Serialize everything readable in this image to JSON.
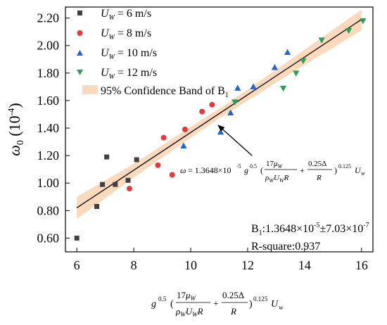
{
  "chart_data": {
    "type": "scatter",
    "xlabel": "g^0.5 (17μW / ρW UW R + 0.25Δ / R)^0.125 Uw",
    "ylabel": "ω0 (10-4)",
    "xlim": [
      5.6,
      16.4
    ],
    "ylim": [
      0.5,
      2.28
    ],
    "xticks": [
      "6",
      "8",
      "10",
      "12",
      "14",
      "16"
    ],
    "yticks": [
      "0.60",
      "0.80",
      "1.00",
      "1.20",
      "1.40",
      "1.60",
      "1.80",
      "2.00",
      "2.20"
    ],
    "grid": false,
    "legend_position": "top-left",
    "series": [
      {
        "name": "UW = 6 m/s",
        "marker": "square",
        "color": "#404040",
        "points": [
          [
            6.0,
            0.6
          ],
          [
            6.7,
            0.83
          ],
          [
            6.9,
            0.99
          ],
          [
            7.05,
            1.19
          ],
          [
            7.35,
            0.99
          ],
          [
            7.8,
            1.02
          ],
          [
            8.1,
            1.17
          ]
        ]
      },
      {
        "name": "UW = 8 m/s",
        "marker": "circle",
        "color": "#e8383d",
        "points": [
          [
            7.85,
            0.96
          ],
          [
            8.85,
            1.13
          ],
          [
            9.05,
            1.33
          ],
          [
            9.35,
            1.06
          ],
          [
            9.8,
            1.39
          ],
          [
            10.4,
            1.52
          ],
          [
            10.75,
            1.57
          ]
        ]
      },
      {
        "name": "UW = 10 m/s",
        "marker": "triangle-up",
        "color": "#2266cc",
        "points": [
          [
            9.75,
            1.27
          ],
          [
            11.05,
            1.37
          ],
          [
            11.4,
            1.51
          ],
          [
            11.65,
            1.69
          ],
          [
            12.2,
            1.7
          ],
          [
            12.95,
            1.84
          ],
          [
            13.4,
            1.95
          ]
        ]
      },
      {
        "name": "UW = 12 m/s",
        "marker": "triangle-down",
        "color": "#2e9e55",
        "points": [
          [
            11.55,
            1.59
          ],
          [
            13.25,
            1.69
          ],
          [
            13.7,
            1.8
          ],
          [
            13.95,
            1.89
          ],
          [
            14.6,
            2.04
          ],
          [
            15.55,
            2.11
          ],
          [
            16.05,
            2.18
          ]
        ]
      }
    ],
    "fit": {
      "points": [
        [
          6.0,
          0.82
        ],
        [
          16.0,
          2.19
        ]
      ],
      "color": "#000000",
      "band_name": "95% Confidence Band of B1",
      "band_color": "#fbd9bd",
      "band_lower": [
        [
          6.0,
          0.74
        ],
        [
          8.0,
          1.04
        ],
        [
          10.0,
          1.33
        ],
        [
          11.0,
          1.47
        ],
        [
          12.0,
          1.6
        ],
        [
          14.0,
          1.86
        ],
        [
          16.0,
          2.11
        ]
      ],
      "band_upper": [
        [
          6.0,
          0.9
        ],
        [
          8.0,
          1.14
        ],
        [
          10.0,
          1.41
        ],
        [
          11.0,
          1.54
        ],
        [
          12.0,
          1.68
        ],
        [
          14.0,
          1.97
        ],
        [
          16.0,
          2.26
        ]
      ]
    },
    "annotations": {
      "equation": "ω = 1.3648×10-5 g0.5 (17μW / ρW UW R + 0.25Δ / R)0.125 Uw",
      "b1": "B1:1.3648×10-5±7.03×10-7",
      "r_square": "R-square:0.937"
    }
  }
}
